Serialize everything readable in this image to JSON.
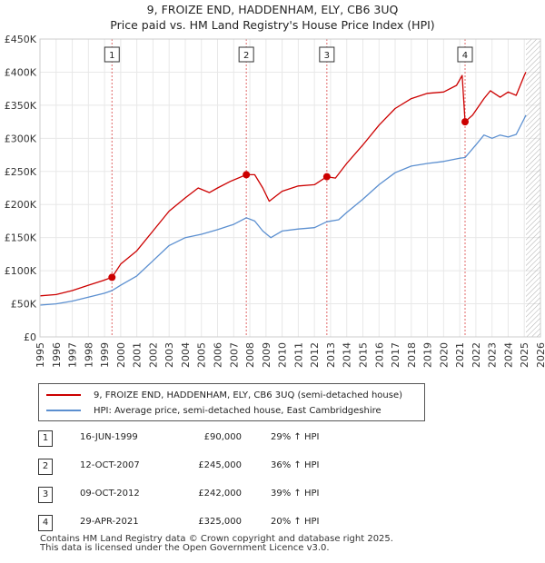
{
  "title": "9, FROIZE END, HADDENHAM, ELY, CB6 3UQ",
  "subtitle": "Price paid vs. HM Land Registry's House Price Index (HPI)",
  "colors": {
    "property": "#cc0000",
    "hpi": "#5b8fd0",
    "sale_line": "#e06666",
    "grid": "#e8e8e8",
    "plot_bg": "#ffffff",
    "future_hatch": "#999999"
  },
  "chart_data": {
    "type": "line",
    "title": "Price paid vs. HM Land Registry's House Price Index (HPI)",
    "xlabel": "",
    "ylabel": "",
    "xlim": [
      1995,
      2026
    ],
    "ylim": [
      0,
      450000
    ],
    "y_ticks": [
      0,
      50000,
      100000,
      150000,
      200000,
      250000,
      300000,
      350000,
      400000,
      450000
    ],
    "y_tick_labels": [
      "£0",
      "£50K",
      "£100K",
      "£150K",
      "£200K",
      "£250K",
      "£300K",
      "£350K",
      "£400K",
      "£450K"
    ],
    "x_ticks": [
      1995,
      1996,
      1997,
      1998,
      1999,
      2000,
      2001,
      2002,
      2003,
      2004,
      2005,
      2006,
      2007,
      2008,
      2009,
      2010,
      2011,
      2012,
      2013,
      2014,
      2015,
      2016,
      2017,
      2018,
      2019,
      2020,
      2021,
      2022,
      2023,
      2024,
      2025,
      2026
    ],
    "grid": true,
    "future_hatched_from": 2025.1,
    "series": [
      {
        "name": "9, FROIZE END, HADDENHAM, ELY, CB6 3UQ (semi-detached house)",
        "color": "#cc0000",
        "x": [
          1995,
          1996,
          1997,
          1998,
          1998.9,
          1999.46,
          2000,
          2001,
          2002,
          2003,
          2004,
          2004.8,
          2005.5,
          2006,
          2006.8,
          2007.78,
          2008.3,
          2008.8,
          2009.2,
          2010,
          2011,
          2012,
          2012.77,
          2013.3,
          2014,
          2015,
          2016,
          2017,
          2018,
          2019,
          2020,
          2020.8,
          2021.15,
          2021.33,
          2021.8,
          2022.5,
          2022.9,
          2023.5,
          2024,
          2024.5,
          2025.0,
          2025.1
        ],
        "y": [
          62000,
          64000,
          70000,
          78000,
          85000,
          90000,
          110000,
          130000,
          160000,
          190000,
          210000,
          225000,
          218000,
          225000,
          235000,
          245000,
          245000,
          225000,
          205000,
          220000,
          228000,
          230000,
          242000,
          240000,
          262000,
          290000,
          320000,
          345000,
          360000,
          368000,
          370000,
          380000,
          395000,
          325000,
          335000,
          360000,
          372000,
          362000,
          370000,
          365000,
          395000,
          400000
        ]
      },
      {
        "name": "HPI: Average price, semi-detached house, East Cambridgeshire",
        "color": "#5b8fd0",
        "x": [
          1995,
          1996,
          1997,
          1998,
          1999,
          1999.46,
          2000,
          2001,
          2002,
          2003,
          2004,
          2005,
          2006,
          2007,
          2007.78,
          2008.3,
          2008.8,
          2009.3,
          2010,
          2011,
          2012,
          2012.77,
          2013.5,
          2014,
          2015,
          2016,
          2017,
          2018,
          2019,
          2020,
          2021,
          2021.33,
          2022,
          2022.5,
          2023,
          2023.5,
          2024,
          2024.5,
          2025.0,
          2025.1
        ],
        "y": [
          48000,
          50000,
          54000,
          60000,
          66000,
          70000,
          78000,
          92000,
          115000,
          138000,
          150000,
          155000,
          162000,
          170000,
          180000,
          175000,
          160000,
          150000,
          160000,
          163000,
          165000,
          174000,
          177000,
          188000,
          208000,
          230000,
          248000,
          258000,
          262000,
          265000,
          270000,
          271000,
          290000,
          305000,
          300000,
          305000,
          302000,
          306000,
          330000,
          335000
        ]
      }
    ],
    "annotations": [
      {
        "label": "1",
        "x": 1999.46,
        "y": 90000
      },
      {
        "label": "2",
        "x": 2007.78,
        "y": 245000
      },
      {
        "label": "3",
        "x": 2012.77,
        "y": 242000
      },
      {
        "label": "4",
        "x": 2021.33,
        "y": 325000
      }
    ]
  },
  "legend": {
    "property": "9, FROIZE END, HADDENHAM, ELY, CB6 3UQ (semi-detached house)",
    "hpi": "HPI: Average price, semi-detached house, East Cambridgeshire"
  },
  "sales": [
    {
      "num": "1",
      "date": "16-JUN-1999",
      "price": "£90,000",
      "hpi": "29% ↑ HPI"
    },
    {
      "num": "2",
      "date": "12-OCT-2007",
      "price": "£245,000",
      "hpi": "36% ↑ HPI"
    },
    {
      "num": "3",
      "date": "09-OCT-2012",
      "price": "£242,000",
      "hpi": "39% ↑ HPI"
    },
    {
      "num": "4",
      "date": "29-APR-2021",
      "price": "£325,000",
      "hpi": "20% ↑ HPI"
    }
  ],
  "footer": {
    "line1": "Contains HM Land Registry data © Crown copyright and database right 2025.",
    "line2": "This data is licensed under the Open Government Licence v3.0."
  }
}
